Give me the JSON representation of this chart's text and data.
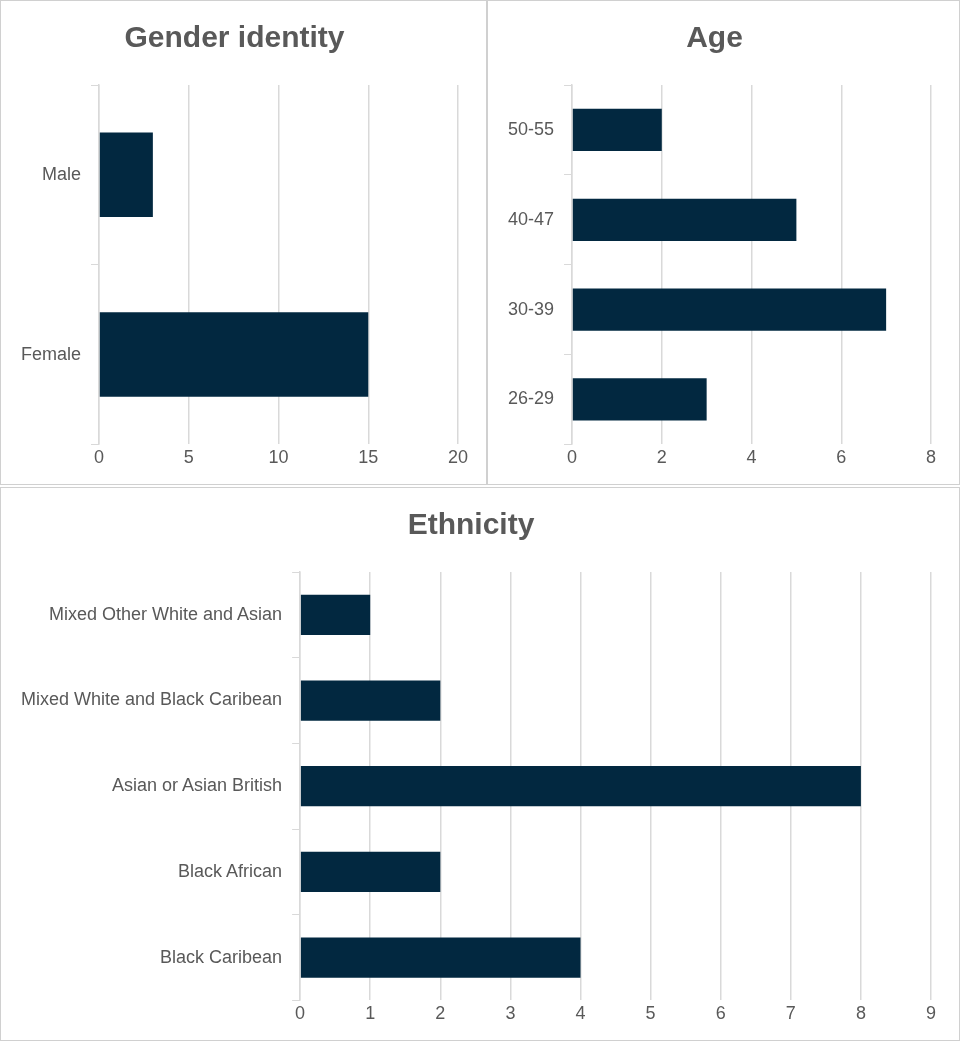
{
  "chart_data": [
    {
      "type": "bar",
      "orientation": "horizontal",
      "title": "Gender identity",
      "categories": [
        "Male",
        "Female"
      ],
      "values": [
        3,
        15
      ],
      "color": "#022840",
      "xlim": [
        0,
        20
      ],
      "xticks": [
        0,
        5,
        10,
        15,
        20
      ],
      "grid": "x",
      "legend": false
    },
    {
      "type": "bar",
      "orientation": "horizontal",
      "title": "Age",
      "categories": [
        "50-55",
        "40-47",
        "30-39",
        "26-29"
      ],
      "values": [
        2,
        5,
        7,
        3
      ],
      "color": "#022840",
      "xlim": [
        0,
        8
      ],
      "xticks": [
        0,
        2,
        4,
        6,
        8
      ],
      "grid": "x",
      "legend": false
    },
    {
      "type": "bar",
      "orientation": "horizontal",
      "title": "Ethnicity",
      "categories": [
        "Mixed Other White and Asian",
        "Mixed White and Black Caribean",
        "Asian or Asian British",
        "Black African",
        "Black Caribean"
      ],
      "values": [
        1,
        2,
        8,
        2,
        4
      ],
      "color": "#022840",
      "xlim": [
        0,
        9
      ],
      "xticks": [
        0,
        1,
        2,
        3,
        4,
        5,
        6,
        7,
        8,
        9
      ],
      "grid": "x",
      "legend": false
    }
  ]
}
